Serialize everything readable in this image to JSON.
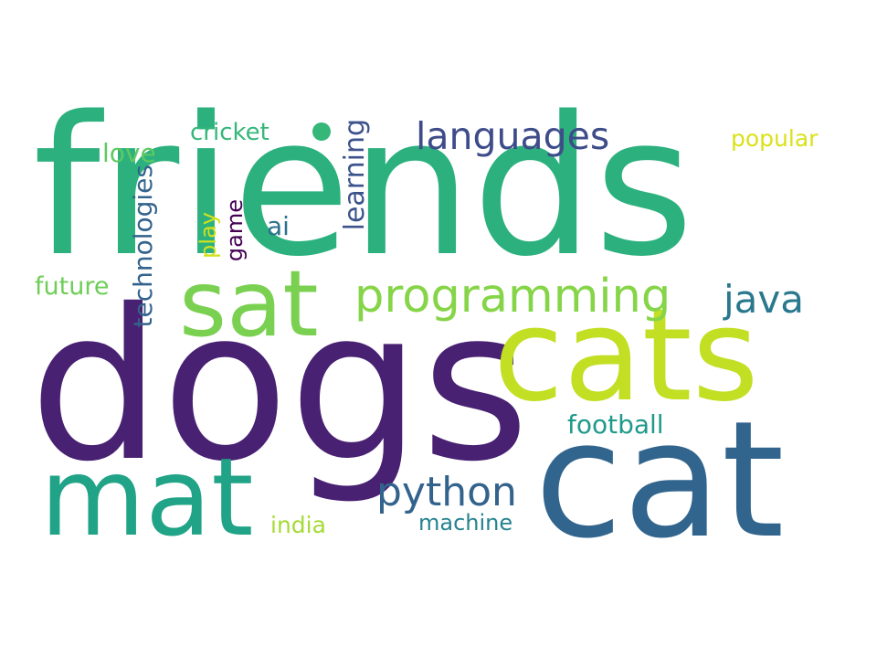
{
  "word_cloud": {
    "words": [
      {
        "id": "friends",
        "text": "friends",
        "color": "#2cb17e"
      },
      {
        "id": "dogs",
        "text": "dogs",
        "color": "#482172"
      },
      {
        "id": "cats",
        "text": "cats",
        "color": "#c3df23"
      },
      {
        "id": "cat",
        "text": "cat",
        "color": "#32658e"
      },
      {
        "id": "mat",
        "text": "mat",
        "color": "#20a386"
      },
      {
        "id": "sat",
        "text": "sat",
        "color": "#7ad151"
      },
      {
        "id": "programming",
        "text": "programming",
        "color": "#86d549"
      },
      {
        "id": "languages",
        "text": "languages",
        "color": "#3e4c8a"
      },
      {
        "id": "java",
        "text": "java",
        "color": "#2a788e"
      },
      {
        "id": "python",
        "text": "python",
        "color": "#33638d"
      },
      {
        "id": "football",
        "text": "football",
        "color": "#1f9a8a"
      },
      {
        "id": "machine",
        "text": "machine",
        "color": "#25838e"
      },
      {
        "id": "india",
        "text": "india",
        "color": "#a5db36"
      },
      {
        "id": "popular",
        "text": "popular",
        "color": "#d8e219"
      },
      {
        "id": "cricket",
        "text": "cricket",
        "color": "#35b779"
      },
      {
        "id": "love",
        "text": "love",
        "color": "#5ec962"
      },
      {
        "id": "future",
        "text": "future",
        "color": "#6ece58"
      },
      {
        "id": "ai",
        "text": "ai",
        "color": "#2c728e"
      },
      {
        "id": "technologies",
        "text": "technologies",
        "color": "#33638d"
      },
      {
        "id": "learning",
        "text": "learning",
        "color": "#3b528b"
      },
      {
        "id": "game",
        "text": "game",
        "color": "#440154"
      },
      {
        "id": "play",
        "text": "play",
        "color": "#d2e21b"
      },
      {
        "id": "dot",
        "text": "",
        "color": "#35b779"
      }
    ]
  }
}
